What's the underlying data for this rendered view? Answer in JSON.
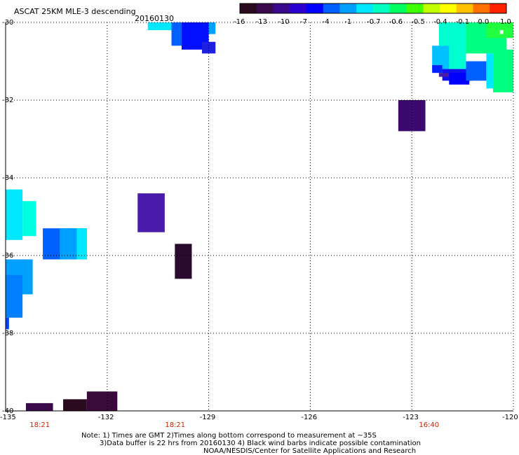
{
  "header": {
    "title": "ASCAT 25KM MLE-3 descending",
    "date": "20160130"
  },
  "colorbar": {
    "labels": [
      "-16",
      "-13",
      "-10",
      "-7",
      "-4",
      "-1",
      "-0.7",
      "-0.6",
      "-0.5",
      "-0.4",
      "-0.1",
      "0.0",
      "1.0"
    ],
    "colors": [
      "#2a0a1e",
      "#3a0a4a",
      "#3a0a8e",
      "#2a00d0",
      "#0000ff",
      "#0060ff",
      "#00a0ff",
      "#00e8ff",
      "#00ffc0",
      "#00ff60",
      "#40ff00",
      "#c0ff00",
      "#ffff00",
      "#ffc000",
      "#ff7000",
      "#ff2000"
    ]
  },
  "map": {
    "lat_labels": [
      "-30",
      "-32",
      "-34",
      "-36",
      "-38",
      "-40"
    ],
    "lon_labels": [
      "-135",
      "-132",
      "-129",
      "-126",
      "-123",
      "-120"
    ],
    "time_labels": [
      {
        "text": "18:21",
        "lon": -134.0
      },
      {
        "text": "18:21",
        "lon": -130.0
      },
      {
        "text": "16:40",
        "lon": -122.5
      }
    ],
    "swaths": [
      {
        "lon": [
          -131.1,
          -130.3
        ],
        "lat": [
          -34.4,
          -35.4
        ],
        "color": "#4a1aaa"
      },
      {
        "lon": [
          -130.0,
          -129.5
        ],
        "lat": [
          -35.7,
          -36.6
        ],
        "color": "#2a0a2e"
      },
      {
        "lon": [
          -123.4,
          -122.6
        ],
        "lat": [
          -32.0,
          -32.8
        ],
        "color": "#3a0a6e"
      },
      {
        "lon": [
          -134.4,
          -133.6
        ],
        "lat": [
          -39.8,
          -40.0
        ],
        "color": "#3a0a4a"
      },
      {
        "lon": [
          -133.3,
          -132.6
        ],
        "lat": [
          -39.7,
          -40.0
        ],
        "color": "#2a0a1e"
      },
      {
        "lon": [
          -132.6,
          -131.7
        ],
        "lat": [
          -39.5,
          -40.0
        ],
        "color": "#3a0a3a"
      },
      {
        "lon": [
          -133.9,
          -132.6
        ],
        "lat": [
          -35.3,
          -36.1
        ],
        "color": "#0060ff"
      },
      {
        "lon": [
          -133.4,
          -132.9
        ],
        "lat": [
          -35.3,
          -36.1
        ],
        "color": "#00a0ff"
      },
      {
        "lon": [
          -132.9,
          -132.6
        ],
        "lat": [
          -35.3,
          -36.1
        ],
        "color": "#00e8ff"
      },
      {
        "lon": [
          -135.0,
          -134.5
        ],
        "lat": [
          -34.3,
          -35.6
        ],
        "color": "#00e8ff"
      },
      {
        "lon": [
          -134.5,
          -134.1
        ],
        "lat": [
          -34.6,
          -35.5
        ],
        "color": "#00ffe0"
      },
      {
        "lon": [
          -135.0,
          -134.2
        ],
        "lat": [
          -36.1,
          -37.0
        ],
        "color": "#00a0ff"
      },
      {
        "lon": [
          -135.0,
          -134.5
        ],
        "lat": [
          -36.5,
          -37.6
        ],
        "color": "#0080ff"
      },
      {
        "lon": [
          -135.0,
          -134.9
        ],
        "lat": [
          -37.6,
          -37.9
        ],
        "color": "#0040ff"
      },
      {
        "lon": [
          -130.8,
          -130.1
        ],
        "lat": [
          -30.0,
          -30.2
        ],
        "color": "#00e8ff"
      },
      {
        "lon": [
          -130.1,
          -129.8
        ],
        "lat": [
          -30.0,
          -30.6
        ],
        "color": "#0060ff"
      },
      {
        "lon": [
          -129.8,
          -129.0
        ],
        "lat": [
          -30.0,
          -30.7
        ],
        "color": "#0010ff"
      },
      {
        "lon": [
          -129.0,
          -128.8
        ],
        "lat": [
          -30.0,
          -30.3
        ],
        "color": "#00a0ff"
      },
      {
        "lon": [
          -129.2,
          -128.8
        ],
        "lat": [
          -30.5,
          -30.8
        ],
        "color": "#2020e0"
      },
      {
        "lon": [
          -122.2,
          -121.4
        ],
        "lat": [
          -30.0,
          -31.2
        ],
        "color": "#00ffd0"
      },
      {
        "lon": [
          -121.4,
          -120.2
        ],
        "lat": [
          -30.0,
          -30.8
        ],
        "color": "#00ff80"
      },
      {
        "lon": [
          -120.8,
          -120.0
        ],
        "lat": [
          -30.0,
          -30.4
        ],
        "color": "#20ff40"
      },
      {
        "lon": [
          -122.4,
          -121.9
        ],
        "lat": [
          -30.6,
          -31.2
        ],
        "color": "#00c0ff"
      },
      {
        "lon": [
          -122.4,
          -122.1
        ],
        "lat": [
          -31.1,
          -31.3
        ],
        "color": "#0020ff"
      },
      {
        "lon": [
          -122.1,
          -121.2
        ],
        "lat": [
          -31.2,
          -31.5
        ],
        "color": "#1010f0"
      },
      {
        "lon": [
          -121.9,
          -121.3
        ],
        "lat": [
          -31.3,
          -31.6
        ],
        "color": "#0000ff"
      },
      {
        "lon": [
          -121.4,
          -120.8
        ],
        "lat": [
          -31.0,
          -31.5
        ],
        "color": "#0060ff"
      },
      {
        "lon": [
          -120.8,
          -120.6
        ],
        "lat": [
          -30.8,
          -31.7
        ],
        "color": "#00e8ff"
      },
      {
        "lon": [
          -120.6,
          -120.0
        ],
        "lat": [
          -30.7,
          -31.8
        ],
        "color": "#00ff80"
      },
      {
        "lon": [
          -122.2,
          -121.9
        ],
        "lat": [
          -31.3,
          -31.4
        ],
        "color": "#4a1aaa"
      },
      {
        "lon": [
          -120.4,
          -120.3
        ],
        "lat": [
          -30.2,
          -30.3
        ],
        "color": "#ffffff"
      }
    ]
  },
  "notes": [
    "Note: 1) Times are GMT 2)Times along bottom correspond to measurement at ~35S",
    "3)Data buffer is 22 hrs from 20160130 4) Black wind barbs indicate possible contamination",
    "NOAA/NESDIS/Center for Satellite Applications and Research"
  ]
}
